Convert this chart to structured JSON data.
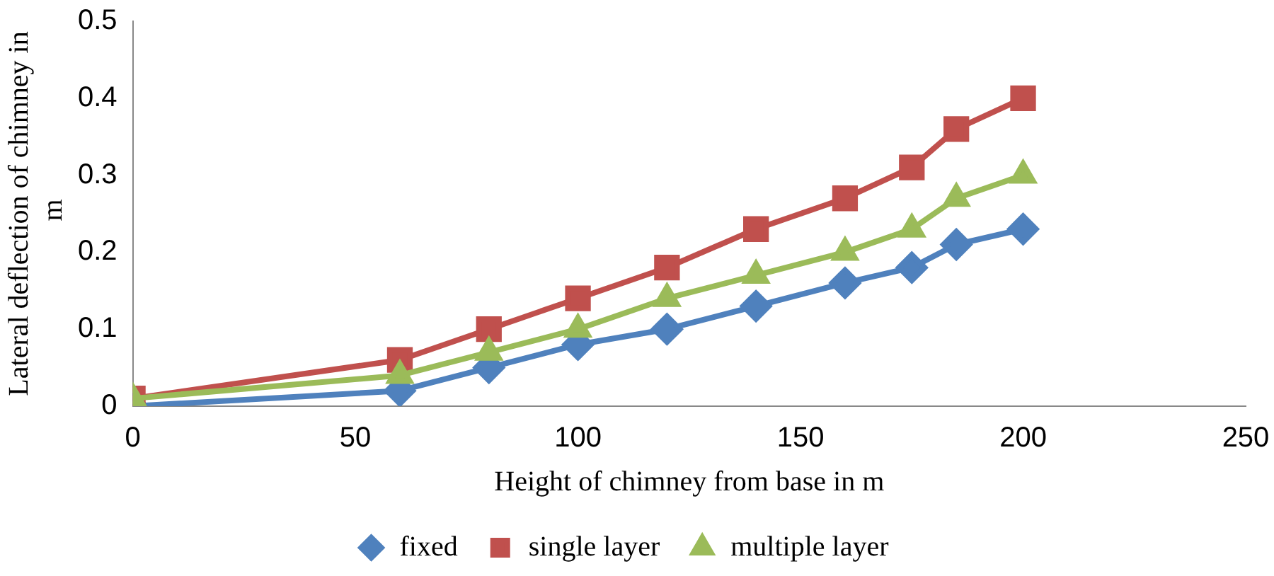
{
  "chart_data": {
    "type": "line",
    "xlabel": "Height of chimney from base in m",
    "ylabel": "Lateral deflection of chimney in  m",
    "x": [
      0,
      60,
      80,
      100,
      120,
      140,
      160,
      175,
      185,
      200
    ],
    "series": [
      {
        "name": "fixed",
        "color": "#4f81bd",
        "marker": "diamond",
        "values": [
          0,
          0.02,
          0.05,
          0.08,
          0.1,
          0.13,
          0.16,
          0.18,
          0.21,
          0.23
        ]
      },
      {
        "name": "single layer",
        "color": "#c0504d",
        "marker": "square",
        "values": [
          0.01,
          0.06,
          0.1,
          0.14,
          0.18,
          0.23,
          0.27,
          0.31,
          0.36,
          0.4
        ]
      },
      {
        "name": "multiple layer",
        "color": "#9bbb59",
        "marker": "triangle",
        "values": [
          0.01,
          0.04,
          0.07,
          0.1,
          0.14,
          0.17,
          0.2,
          0.23,
          0.27,
          0.3
        ]
      }
    ],
    "xlim": [
      0,
      250
    ],
    "xticks": [
      0,
      50,
      100,
      150,
      200,
      250
    ],
    "ylim": [
      0,
      0.5
    ],
    "yticks": [
      0,
      0.1,
      0.2,
      0.3,
      0.4,
      0.5
    ],
    "grid": false,
    "legend": "bottom",
    "line_style": "solid"
  }
}
